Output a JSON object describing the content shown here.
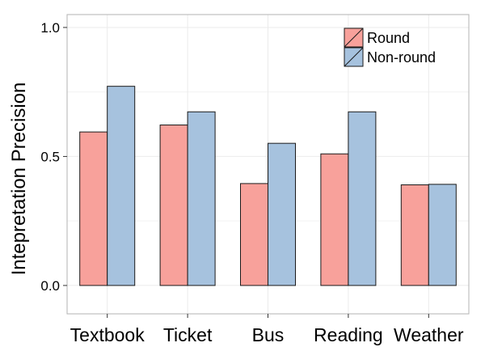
{
  "chart_data": {
    "type": "bar",
    "title": "",
    "xlabel": "",
    "ylabel": "Intepretation Precision",
    "ylim": [
      -0.11,
      1.05
    ],
    "yticks": [
      0.0,
      0.5,
      1.0
    ],
    "ytick_labels": [
      "0.0",
      "0.5",
      "1.0"
    ],
    "yminor": [
      0.25,
      0.75
    ],
    "grid": true,
    "legend_position": "top-right",
    "categories": [
      "Textbook",
      "Ticket",
      "Bus",
      "Reading",
      "Weather"
    ],
    "series": [
      {
        "name": "Round",
        "color": "#F8A19B",
        "values": [
          0.595,
          0.622,
          0.395,
          0.51,
          0.39
        ]
      },
      {
        "name": "Non-round",
        "color": "#A6C2DE",
        "values": [
          0.772,
          0.673,
          0.551,
          0.673,
          0.392
        ]
      }
    ]
  }
}
